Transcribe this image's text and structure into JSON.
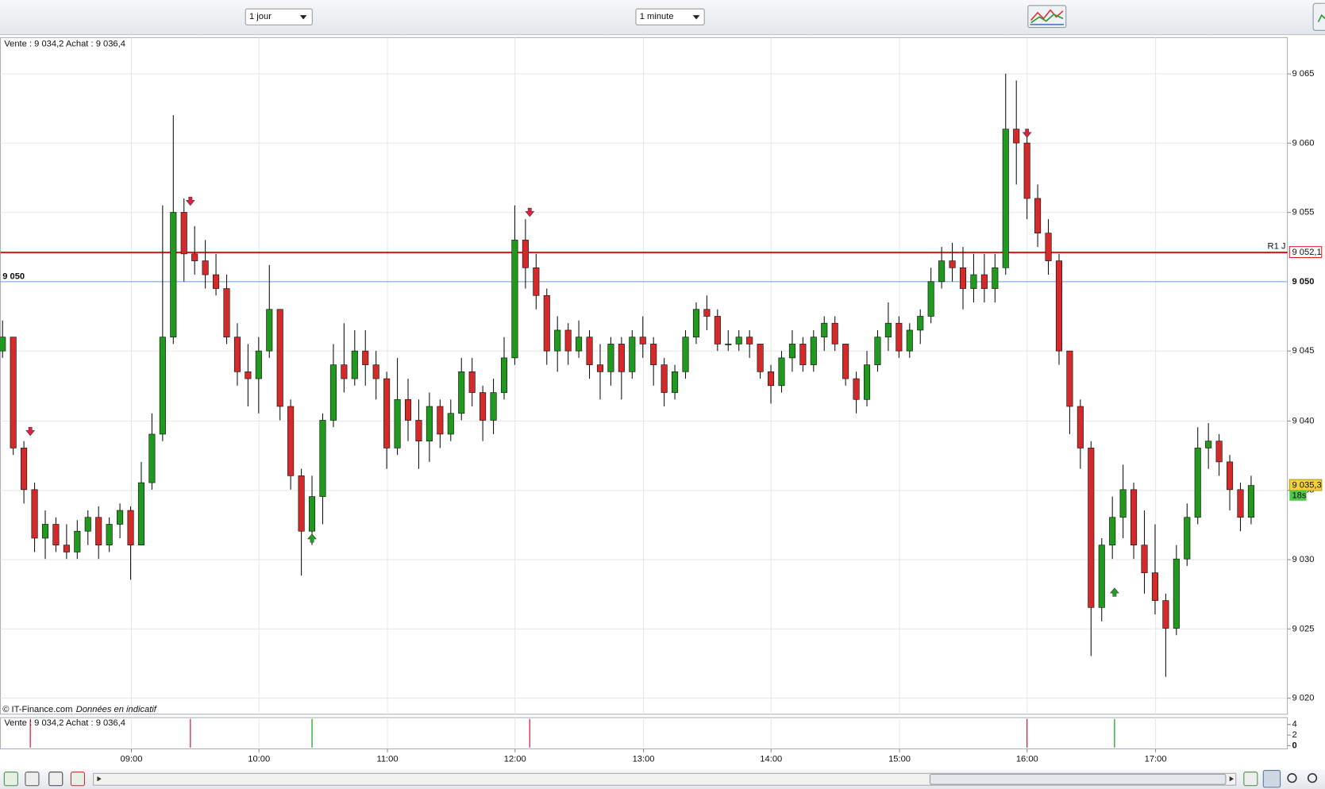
{
  "toolbar": {
    "period": "1 jour",
    "interval": "1 minute"
  },
  "chart_data": {
    "type": "candlestick",
    "header": "Vente : 9 034,2 Achat : 9 036,4",
    "source": "© IT-Finance.com",
    "source_note": "Données en indicatif",
    "up_color": "#1f9a1f",
    "down_color": "#d42a2a",
    "x": [
      "08:00",
      "08:05",
      "08:10",
      "08:15",
      "08:20",
      "08:25",
      "08:30",
      "08:35",
      "08:40",
      "08:45",
      "08:50",
      "08:55",
      "09:00",
      "09:05",
      "09:10",
      "09:15",
      "09:20",
      "09:25",
      "09:30",
      "09:35",
      "09:40",
      "09:45",
      "09:50",
      "09:55",
      "10:00",
      "10:05",
      "10:10",
      "10:15",
      "10:20",
      "10:25",
      "10:30",
      "10:35",
      "10:40",
      "10:45",
      "10:50",
      "10:55",
      "11:00",
      "11:05",
      "11:10",
      "11:15",
      "11:20",
      "11:25",
      "11:30",
      "11:35",
      "11:40",
      "11:45",
      "11:50",
      "11:55",
      "12:00",
      "12:05",
      "12:10",
      "12:15",
      "12:20",
      "12:25",
      "12:30",
      "12:35",
      "12:40",
      "12:45",
      "12:50",
      "12:55",
      "13:00",
      "13:05",
      "13:10",
      "13:15",
      "13:20",
      "13:25",
      "13:30",
      "13:35",
      "13:40",
      "13:45",
      "13:50",
      "13:55",
      "14:00",
      "14:05",
      "14:10",
      "14:15",
      "14:20",
      "14:25",
      "14:30",
      "14:35",
      "14:40",
      "14:45",
      "14:50",
      "14:55",
      "15:00",
      "15:05",
      "15:10",
      "15:15",
      "15:20",
      "15:25",
      "15:30",
      "15:35",
      "15:40",
      "15:45",
      "15:50",
      "15:55",
      "16:00",
      "16:05",
      "16:10",
      "16:15",
      "16:20",
      "16:25",
      "16:30",
      "16:35",
      "16:40",
      "16:45",
      "16:50",
      "16:55",
      "17:00",
      "17:05",
      "17:10",
      "17:15",
      "17:20",
      "17:25",
      "17:30",
      "17:35",
      "17:40",
      "17:45"
    ],
    "ohlc": [
      [
        9045,
        9047.2,
        9044.5,
        9046
      ],
      [
        9046,
        9046,
        9037.5,
        9038
      ],
      [
        9038,
        9038.5,
        9034,
        9035
      ],
      [
        9035,
        9035.5,
        9030.5,
        9031.5
      ],
      [
        9031.5,
        9033.5,
        9030,
        9032.5
      ],
      [
        9032.5,
        9033,
        9030.5,
        9031
      ],
      [
        9031,
        9032.5,
        9030,
        9030.5
      ],
      [
        9030.5,
        9032.8,
        9030,
        9032
      ],
      [
        9032,
        9033.5,
        9031,
        9033
      ],
      [
        9033,
        9033.8,
        9030,
        9031
      ],
      [
        9031,
        9033,
        9030.5,
        9032.5
      ],
      [
        9032.5,
        9034,
        9031.5,
        9033.5
      ],
      [
        9033.5,
        9033.8,
        9028.5,
        9031
      ],
      [
        9031,
        9037,
        9031,
        9035.5
      ],
      [
        9035.5,
        9040.5,
        9035,
        9039
      ],
      [
        9039,
        9055.5,
        9038.5,
        9046
      ],
      [
        9046,
        9062,
        9045.5,
        9055
      ],
      [
        9055,
        9056,
        9050,
        9052
      ],
      [
        9052,
        9054,
        9050.5,
        9051.5
      ],
      [
        9051.5,
        9053,
        9049.5,
        9050.5
      ],
      [
        9050.5,
        9052,
        9049,
        9049.5
      ],
      [
        9049.5,
        9050.5,
        9045.5,
        9046
      ],
      [
        9046,
        9047,
        9042.5,
        9043.5
      ],
      [
        9043.5,
        9045.5,
        9041,
        9043
      ],
      [
        9043,
        9046,
        9040.5,
        9045
      ],
      [
        9045,
        9051.2,
        9044.5,
        9048
      ],
      [
        9048,
        9048,
        9040,
        9041
      ],
      [
        9041,
        9041.5,
        9035,
        9036
      ],
      [
        9036,
        9036.5,
        9028.8,
        9032
      ],
      [
        9032,
        9036,
        9031,
        9034.5
      ],
      [
        9034.5,
        9040.5,
        9032.5,
        9040
      ],
      [
        9040,
        9045.5,
        9039.5,
        9044
      ],
      [
        9044,
        9047,
        9042,
        9043
      ],
      [
        9043,
        9046.5,
        9042.5,
        9045
      ],
      [
        9045,
        9046.5,
        9042.5,
        9044
      ],
      [
        9044,
        9045,
        9041.5,
        9043
      ],
      [
        9043,
        9043.5,
        9036.5,
        9038
      ],
      [
        9038,
        9044.5,
        9037.5,
        9041.5
      ],
      [
        9041.5,
        9043,
        9038.5,
        9040
      ],
      [
        9040,
        9041.5,
        9036.5,
        9038.5
      ],
      [
        9038.5,
        9042,
        9037,
        9041
      ],
      [
        9041,
        9041.5,
        9038,
        9039
      ],
      [
        9039,
        9041.5,
        9038.5,
        9040.5
      ],
      [
        9040.5,
        9044.5,
        9040,
        9043.5
      ],
      [
        9043.5,
        9044.5,
        9041,
        9042
      ],
      [
        9042,
        9042.5,
        9038.5,
        9040
      ],
      [
        9040,
        9043,
        9039,
        9042
      ],
      [
        9042,
        9046,
        9041.5,
        9044.5
      ],
      [
        9044.5,
        9055.5,
        9044,
        9053
      ],
      [
        9053,
        9054.5,
        9049.5,
        9051
      ],
      [
        9051,
        9052,
        9048,
        9049
      ],
      [
        9049,
        9049.5,
        9044,
        9045
      ],
      [
        9045,
        9047.5,
        9043.5,
        9046.5
      ],
      [
        9046.5,
        9047,
        9044,
        9045
      ],
      [
        9045,
        9047.2,
        9044.5,
        9046
      ],
      [
        9046,
        9046.5,
        9043,
        9044
      ],
      [
        9044,
        9045.5,
        9041.5,
        9043.5
      ],
      [
        9043.5,
        9046,
        9042.5,
        9045.5
      ],
      [
        9045.5,
        9046,
        9041.5,
        9043.5
      ],
      [
        9043.5,
        9046.5,
        9043,
        9046
      ],
      [
        9046,
        9047.5,
        9044.5,
        9045.5
      ],
      [
        9045.5,
        9046,
        9042.5,
        9044
      ],
      [
        9044,
        9044.5,
        9041,
        9042
      ],
      [
        9042,
        9044,
        9041.5,
        9043.5
      ],
      [
        9043.5,
        9046.5,
        9043,
        9046
      ],
      [
        9046,
        9048.5,
        9045.5,
        9048
      ],
      [
        9048,
        9049,
        9046.5,
        9047.5
      ],
      [
        9047.5,
        9048,
        9045,
        9045.5
      ],
      [
        9045.5,
        9046.5,
        9045,
        9045.5
      ],
      [
        9045.5,
        9046.5,
        9045,
        9046
      ],
      [
        9046,
        9046.5,
        9044.5,
        9045.5
      ],
      [
        9045.5,
        9045.5,
        9043,
        9043.5
      ],
      [
        9043.5,
        9044,
        9041.2,
        9042.5
      ],
      [
        9042.5,
        9045,
        9042,
        9044.5
      ],
      [
        9044.5,
        9046.5,
        9043.5,
        9045.5
      ],
      [
        9045.5,
        9046,
        9043.5,
        9044
      ],
      [
        9044,
        9046.5,
        9043.5,
        9046
      ],
      [
        9046,
        9047.5,
        9045,
        9047
      ],
      [
        9047,
        9047.5,
        9045,
        9045.5
      ],
      [
        9045.5,
        9045.5,
        9042.5,
        9043
      ],
      [
        9043,
        9043.5,
        9040.5,
        9041.5
      ],
      [
        9041.5,
        9045,
        9041,
        9044
      ],
      [
        9044,
        9046.5,
        9043.5,
        9046
      ],
      [
        9046,
        9048.5,
        9045,
        9047
      ],
      [
        9047,
        9047.5,
        9044.5,
        9045
      ],
      [
        9045,
        9047,
        9044.5,
        9046.5
      ],
      [
        9046.5,
        9048,
        9045.5,
        9047.5
      ],
      [
        9047.5,
        9051,
        9047,
        9050
      ],
      [
        9050,
        9052.5,
        9049.5,
        9051.5
      ],
      [
        9051.5,
        9052.8,
        9050,
        9051
      ],
      [
        9051,
        9052.5,
        9048,
        9049.5
      ],
      [
        9049.5,
        9052,
        9048.5,
        9050.5
      ],
      [
        9050.5,
        9052,
        9048.5,
        9049.5
      ],
      [
        9049.5,
        9052,
        9048.5,
        9051
      ],
      [
        9051,
        9065,
        9050.5,
        9061
      ],
      [
        9061,
        9064.5,
        9057,
        9060
      ],
      [
        9060,
        9060.5,
        9054.5,
        9056
      ],
      [
        9056,
        9057,
        9052.5,
        9053.5
      ],
      [
        9053.5,
        9054.5,
        9050.5,
        9051.5
      ],
      [
        9051.5,
        9052,
        9044,
        9045
      ],
      [
        9045,
        9045,
        9039,
        9041
      ],
      [
        9041,
        9041.5,
        9036.5,
        9038
      ],
      [
        9038,
        9038.5,
        9023,
        9026.5
      ],
      [
        9026.5,
        9031.5,
        9025.5,
        9031
      ],
      [
        9031,
        9034.5,
        9030,
        9033
      ],
      [
        9033,
        9036.8,
        9031.5,
        9035
      ],
      [
        9035,
        9035.5,
        9030,
        9031
      ],
      [
        9031,
        9033.5,
        9027.5,
        9029
      ],
      [
        9029,
        9032.5,
        9026,
        9027
      ],
      [
        9027,
        9027.5,
        9021.5,
        9025
      ],
      [
        9025,
        9031,
        9024.5,
        9030
      ],
      [
        9030,
        9034,
        9029.5,
        9033
      ],
      [
        9033,
        9039.5,
        9032.5,
        9038
      ],
      [
        9038,
        9039.8,
        9036.5,
        9038.5
      ],
      [
        9038.5,
        9039,
        9036,
        9037
      ],
      [
        9037,
        9037.5,
        9033.5,
        9035
      ],
      [
        9035,
        9035.5,
        9032,
        9033
      ],
      [
        9033,
        9036,
        9032.5,
        9035.3
      ]
    ],
    "xlim": [
      "07:59",
      "18:02"
    ],
    "xticks": [
      "09:00",
      "10:00",
      "11:00",
      "12:00",
      "13:00",
      "14:00",
      "15:00",
      "16:00",
      "17:00"
    ],
    "ylim": [
      9018.8,
      9067.6
    ],
    "yticks": [
      {
        "value": 9020,
        "label": "9 020"
      },
      {
        "value": 9025,
        "label": "9 025"
      },
      {
        "value": 9030,
        "label": "9 030"
      },
      {
        "value": 9035,
        "label": "9 035"
      },
      {
        "value": 9040,
        "label": "9 040"
      },
      {
        "value": 9045,
        "label": "9 045"
      },
      {
        "value": 9055,
        "label": "9 055"
      },
      {
        "value": 9060,
        "label": "9 060"
      },
      {
        "value": 9065,
        "label": "9 065"
      }
    ],
    "grid": true,
    "levels": [
      {
        "value": 9050,
        "label": "9 050",
        "axis_label": "9 050",
        "color": "#8cb8e8"
      },
      {
        "value": 9052.1,
        "name": "R1 J",
        "value_label": "9 052,1",
        "color": "#e02020"
      }
    ],
    "last_price_label": "9 035,3",
    "last_price_timer": "18s",
    "signals": [
      {
        "x": "08:13",
        "direction": "sell",
        "price": 9039.2
      },
      {
        "x": "09:28",
        "direction": "sell",
        "price": 9055.8
      },
      {
        "x": "10:25",
        "direction": "buy",
        "price": 9031.5
      },
      {
        "x": "12:07",
        "direction": "sell",
        "price": 9055
      },
      {
        "x": "16:00",
        "direction": "sell",
        "price": 9060.7
      },
      {
        "x": "16:41",
        "direction": "buy",
        "price": 9027.6
      }
    ],
    "indicator": {
      "header": "Vente : 9 034,2 Achat : 9 036,4",
      "ylim": [
        -0.6,
        5.3
      ],
      "yticks": [
        0,
        2,
        4
      ]
    }
  }
}
